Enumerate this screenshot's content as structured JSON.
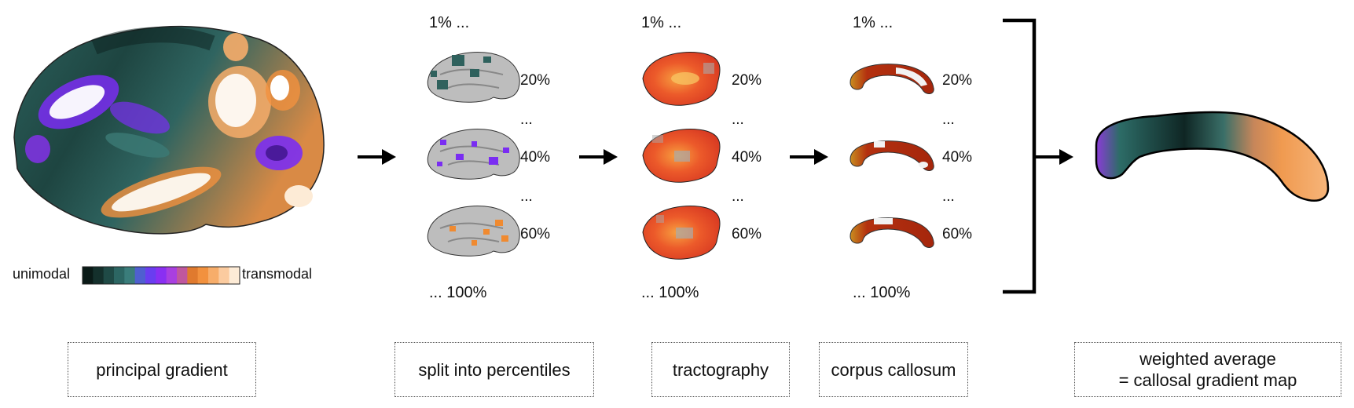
{
  "legend": {
    "low_label": "unimodal",
    "high_label": "transmodal",
    "colors": [
      "#0a1a17",
      "#14302c",
      "#1f4a46",
      "#2c6663",
      "#3a7d7b",
      "#4f5fd0",
      "#6a3df0",
      "#8a2ff2",
      "#a93fe0",
      "#c0579e",
      "#e07a2e",
      "#f2913e",
      "#f7ad6a",
      "#fbcb9f",
      "#fdebd6"
    ]
  },
  "stages": [
    {
      "caption": "principal gradient"
    },
    {
      "caption": "split into percentiles"
    },
    {
      "caption": "tractography"
    },
    {
      "caption": "corpus callosum"
    },
    {
      "caption_lines": [
        "weighted average",
        "= callosal gradient map"
      ]
    }
  ],
  "percentiles": {
    "first": "1% ...",
    "last": "... 100%",
    "rows": [
      "20%",
      "40%",
      "60%"
    ],
    "ellipsis": "..."
  },
  "colors": {
    "teal": "#2f615d",
    "purple": "#7a2df2",
    "orange": "#f08a30",
    "tract_red": "#e8402a",
    "callosum_red": "#b02a10"
  }
}
